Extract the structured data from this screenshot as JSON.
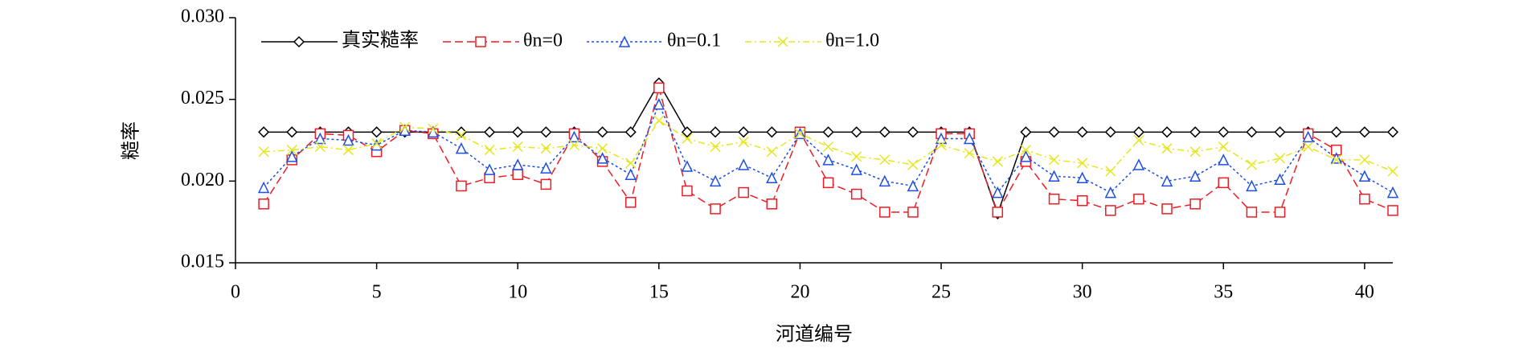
{
  "chart_data": {
    "type": "line",
    "xlabel": "河道编号",
    "ylabel": "糙率",
    "x": [
      1,
      2,
      3,
      4,
      5,
      6,
      7,
      8,
      9,
      10,
      11,
      12,
      13,
      14,
      15,
      16,
      17,
      18,
      19,
      20,
      21,
      22,
      23,
      24,
      25,
      26,
      27,
      28,
      29,
      30,
      31,
      32,
      33,
      34,
      35,
      36,
      37,
      38,
      39,
      40,
      41
    ],
    "xlim": [
      0,
      41
    ],
    "xticks": [
      0,
      5,
      10,
      15,
      20,
      25,
      30,
      35,
      40
    ],
    "ylim": [
      0.015,
      0.03
    ],
    "yticks": [
      0.015,
      {
        "value": 0.02,
        "label": "0.020"
      },
      0.025,
      {
        "value": 0.03,
        "label": "0.030"
      }
    ],
    "legend": "upper left",
    "series": [
      {
        "name": "真实糙率",
        "color": "#000000",
        "marker": "diamond",
        "dash": "none",
        "values": [
          0.023,
          0.023,
          0.023,
          0.023,
          0.023,
          0.023,
          0.023,
          0.023,
          0.023,
          0.023,
          0.023,
          0.023,
          0.023,
          0.023,
          0.026,
          0.023,
          0.023,
          0.023,
          0.023,
          0.023,
          0.023,
          0.023,
          0.023,
          0.023,
          0.023,
          0.023,
          0.018,
          0.023,
          0.023,
          0.023,
          0.023,
          0.023,
          0.023,
          0.023,
          0.023,
          0.023,
          0.023,
          0.023,
          0.023,
          0.023,
          0.023
        ]
      },
      {
        "name": "θn=0",
        "color": "#ee1c24",
        "marker": "square",
        "dash": "10 5",
        "values": [
          0.0186,
          0.0213,
          0.0229,
          0.0228,
          0.0218,
          0.0231,
          0.0229,
          0.0197,
          0.0202,
          0.0204,
          0.0198,
          0.0229,
          0.0212,
          0.0187,
          0.0257,
          0.0194,
          0.0183,
          0.0193,
          0.0186,
          0.023,
          0.0199,
          0.0192,
          0.0181,
          0.0181,
          0.0229,
          0.0229,
          0.0181,
          0.0212,
          0.0189,
          0.0188,
          0.0182,
          0.0189,
          0.0183,
          0.0186,
          0.0199,
          0.0181,
          0.0181,
          0.0229,
          0.0219,
          0.0189,
          0.0182
        ]
      },
      {
        "name": "θn=0.1",
        "color": "#1f4fe0",
        "marker": "triangle",
        "dash": "3 3",
        "values": [
          0.0196,
          0.0215,
          0.0226,
          0.0225,
          0.0222,
          0.0231,
          0.023,
          0.022,
          0.0207,
          0.021,
          0.0208,
          0.0227,
          0.0214,
          0.0204,
          0.0247,
          0.0209,
          0.02,
          0.021,
          0.0202,
          0.0229,
          0.0213,
          0.0207,
          0.02,
          0.0197,
          0.0226,
          0.0226,
          0.0193,
          0.0215,
          0.0203,
          0.0202,
          0.0193,
          0.021,
          0.02,
          0.0203,
          0.0213,
          0.0197,
          0.0201,
          0.0227,
          0.0214,
          0.0203,
          0.0193
        ]
      },
      {
        "name": "θn=1.0",
        "color": "#e6e620",
        "marker": "x",
        "dash": "8 4 2 4",
        "values": [
          0.0218,
          0.0219,
          0.0221,
          0.0219,
          0.0223,
          0.0233,
          0.0232,
          0.0228,
          0.0219,
          0.0221,
          0.022,
          0.0222,
          0.022,
          0.0211,
          0.0237,
          0.0226,
          0.0221,
          0.0224,
          0.0218,
          0.0229,
          0.0221,
          0.0215,
          0.0213,
          0.021,
          0.0222,
          0.0217,
          0.0212,
          0.0219,
          0.0213,
          0.0211,
          0.0206,
          0.0225,
          0.022,
          0.0218,
          0.0221,
          0.021,
          0.0214,
          0.0221,
          0.0213,
          0.0213,
          0.0206
        ]
      }
    ]
  }
}
